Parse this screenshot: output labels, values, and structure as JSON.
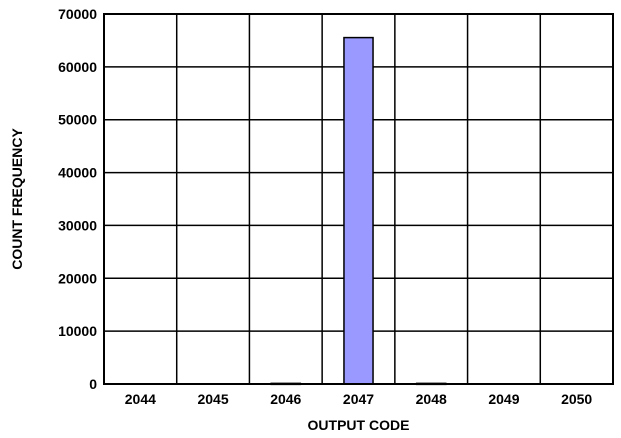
{
  "chart_data": {
    "type": "bar",
    "title": "",
    "xlabel": "OUTPUT CODE",
    "ylabel": "COUNT FREQUENCY",
    "categories": [
      "2044",
      "2045",
      "2046",
      "2047",
      "2048",
      "2049",
      "2050"
    ],
    "values": [
      0,
      0,
      120,
      65536,
      120,
      0,
      0
    ],
    "ylim": [
      0,
      70000
    ],
    "yticks": [
      0,
      10000,
      20000,
      30000,
      40000,
      50000,
      60000,
      70000
    ],
    "grid": true,
    "legend": "none",
    "bar_color": "#9999ff",
    "bar_edge_color": "#000000"
  }
}
